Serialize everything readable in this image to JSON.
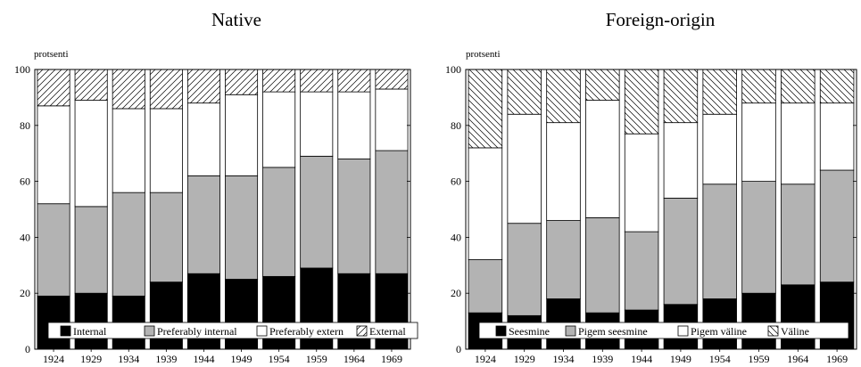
{
  "chart_data": [
    {
      "type": "bar",
      "stacked": true,
      "title": "Native",
      "ylabel": "protsenti",
      "ylim": [
        0,
        100
      ],
      "yticks": [
        0,
        20,
        40,
        60,
        80,
        100
      ],
      "categories": [
        "1924",
        "1929",
        "1934",
        "1939",
        "1944",
        "1949",
        "1954",
        "1959",
        "1964",
        "1969"
      ],
      "series": [
        {
          "name": "Internal",
          "fill": "black",
          "values": [
            19,
            20,
            19,
            24,
            27,
            25,
            26,
            29,
            27,
            27
          ]
        },
        {
          "name": "Preferably internal",
          "fill": "gray",
          "values": [
            33,
            31,
            37,
            32,
            35,
            37,
            39,
            40,
            41,
            44
          ]
        },
        {
          "name": "Preferably extern",
          "fill": "white",
          "values": [
            35,
            38,
            30,
            30,
            26,
            29,
            27,
            23,
            24,
            22
          ]
        },
        {
          "name": "External",
          "fill": "hatch",
          "values": [
            13,
            11,
            14,
            14,
            12,
            9,
            8,
            8,
            8,
            7
          ]
        }
      ],
      "legend_position": "bottom, inside plot",
      "grid": false
    },
    {
      "type": "bar",
      "stacked": true,
      "title": "Foreign-origin",
      "ylabel": "protsenti",
      "ylim": [
        0,
        100
      ],
      "yticks": [
        0,
        20,
        40,
        60,
        80,
        100
      ],
      "categories": [
        "1924",
        "1929",
        "1934",
        "1939",
        "1944",
        "1949",
        "1954",
        "1959",
        "1964",
        "1969"
      ],
      "series": [
        {
          "name": "Seesmine",
          "fill": "black",
          "values": [
            13,
            12,
            18,
            13,
            14,
            16,
            18,
            20,
            23,
            24
          ]
        },
        {
          "name": "Pigem seesmine",
          "fill": "gray",
          "values": [
            19,
            33,
            28,
            34,
            28,
            38,
            41,
            40,
            36,
            40
          ]
        },
        {
          "name": "Pigem väline",
          "fill": "white",
          "values": [
            40,
            39,
            35,
            42,
            35,
            27,
            25,
            28,
            29,
            24
          ]
        },
        {
          "name": "Väline",
          "fill": "hatch",
          "values": [
            28,
            16,
            19,
            11,
            23,
            19,
            16,
            12,
            12,
            12
          ]
        }
      ],
      "legend_position": "bottom, inside plot",
      "grid": false
    }
  ],
  "colors": {
    "black": "#000000",
    "gray": "#b3b3b3",
    "white": "#ffffff",
    "hatch": "#000000"
  }
}
